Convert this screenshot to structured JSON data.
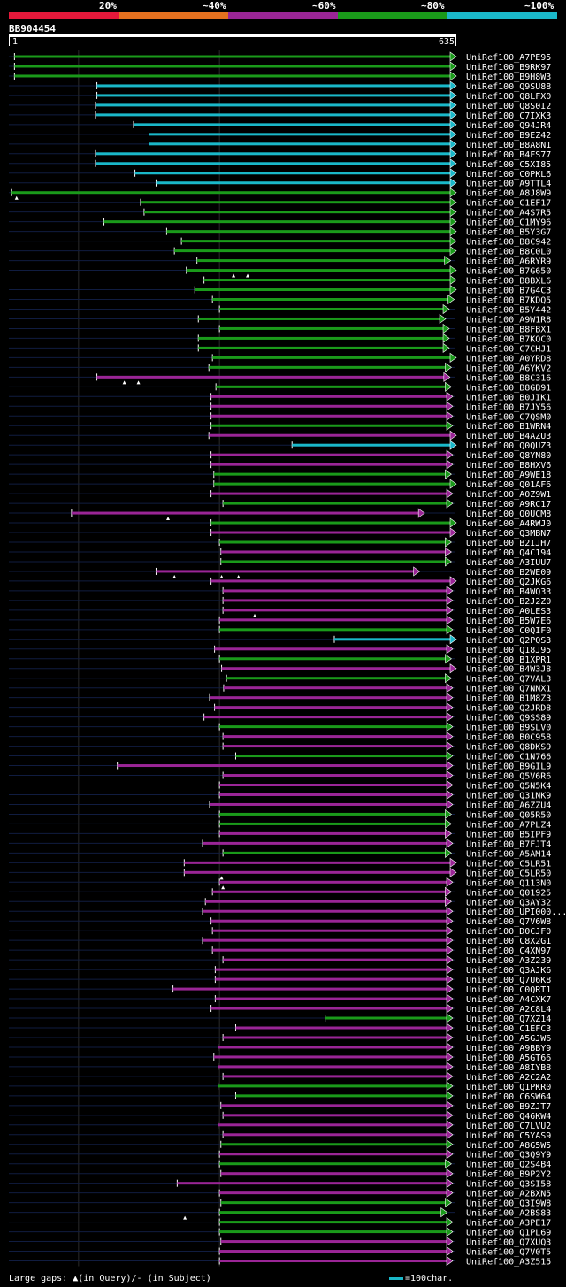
{
  "legend": {
    "labels": [
      "20%",
      "~40%",
      "~60%",
      "~80%",
      "~100%"
    ],
    "colors": [
      "#e4183a",
      "#e5711f",
      "#9a2596",
      "#1a9a1a",
      "#1ab8c9"
    ]
  },
  "query_id": "BB904454",
  "ruler": {
    "start": "1",
    "end": "635"
  },
  "footer": {
    "large_gaps": "Large gaps: ▲(in Query)/- (in Subject)",
    "scale": "=100char."
  },
  "chart_data": {
    "type": "alignment",
    "query_length": 635,
    "color_classes": {
      "G": "#1a9a1a",
      "P": "#9a2596",
      "C": "#1ab8c9"
    },
    "hits": [
      {
        "name": "UniRef100_A7PE95",
        "start": 9,
        "end": 635,
        "cls": "G"
      },
      {
        "name": "UniRef100_B9RK97",
        "start": 9,
        "end": 635,
        "cls": "G"
      },
      {
        "name": "UniRef100_B9H8W3",
        "start": 9,
        "end": 635,
        "cls": "G"
      },
      {
        "name": "UniRef100_Q9SU88",
        "start": 126,
        "end": 635,
        "cls": "C"
      },
      {
        "name": "UniRef100_Q8LFX0",
        "start": 126,
        "end": 635,
        "cls": "C"
      },
      {
        "name": "UniRef100_Q8S0I2",
        "start": 124,
        "end": 635,
        "cls": "C"
      },
      {
        "name": "UniRef100_C7IXK3",
        "start": 124,
        "end": 635,
        "cls": "C"
      },
      {
        "name": "UniRef100_Q94JR4",
        "start": 178,
        "end": 635,
        "cls": "C"
      },
      {
        "name": "UniRef100_B9EZ42",
        "start": 200,
        "end": 635,
        "cls": "C"
      },
      {
        "name": "UniRef100_B8A8N1",
        "start": 200,
        "end": 635,
        "cls": "C"
      },
      {
        "name": "UniRef100_B4FS77",
        "start": 124,
        "end": 635,
        "cls": "C"
      },
      {
        "name": "UniRef100_C5XI85",
        "start": 124,
        "end": 635,
        "cls": "C"
      },
      {
        "name": "UniRef100_C0PKL6",
        "start": 180,
        "end": 635,
        "cls": "C"
      },
      {
        "name": "UniRef100_A9TTL4",
        "start": 210,
        "end": 635,
        "cls": "C"
      },
      {
        "name": "UniRef100_A8J8W9",
        "start": 5,
        "end": 635,
        "cls": "G"
      },
      {
        "name": "UniRef100_C1EF17",
        "start": 188,
        "end": 635,
        "cls": "G"
      },
      {
        "name": "UniRef100_A4S7R5",
        "start": 193,
        "end": 635,
        "cls": "G"
      },
      {
        "name": "UniRef100_C1MY96",
        "start": 136,
        "end": 635,
        "cls": "G"
      },
      {
        "name": "UniRef100_B5Y3G7",
        "start": 225,
        "end": 635,
        "cls": "G"
      },
      {
        "name": "UniRef100_B8C942",
        "start": 246,
        "end": 635,
        "cls": "G"
      },
      {
        "name": "UniRef100_B8C0L0",
        "start": 236,
        "end": 635,
        "cls": "G"
      },
      {
        "name": "UniRef100_A6RYR9",
        "start": 268,
        "end": 627,
        "cls": "G"
      },
      {
        "name": "UniRef100_B7G650",
        "start": 253,
        "end": 635,
        "cls": "G"
      },
      {
        "name": "UniRef100_B8BXL6",
        "start": 278,
        "end": 635,
        "cls": "G"
      },
      {
        "name": "UniRef100_B7G4C3",
        "start": 265,
        "end": 635,
        "cls": "G"
      },
      {
        "name": "UniRef100_B7KDQ5",
        "start": 290,
        "end": 632,
        "cls": "G"
      },
      {
        "name": "UniRef100_B5Y442",
        "start": 300,
        "end": 625,
        "cls": "G"
      },
      {
        "name": "UniRef100_A9W1R8",
        "start": 270,
        "end": 620,
        "cls": "G"
      },
      {
        "name": "UniRef100_B8FBX1",
        "start": 300,
        "end": 625,
        "cls": "G"
      },
      {
        "name": "UniRef100_B7KQC0",
        "start": 270,
        "end": 625,
        "cls": "G"
      },
      {
        "name": "UniRef100_C7CHJ1",
        "start": 270,
        "end": 625,
        "cls": "G"
      },
      {
        "name": "UniRef100_A0YRD8",
        "start": 290,
        "end": 635,
        "cls": "G"
      },
      {
        "name": "UniRef100_A6YKV2",
        "start": 285,
        "end": 628,
        "cls": "G"
      },
      {
        "name": "UniRef100_B8C316",
        "start": 126,
        "end": 626,
        "cls": "P"
      },
      {
        "name": "UniRef100_B8GB91",
        "start": 295,
        "end": 628,
        "cls": "G"
      },
      {
        "name": "UniRef100_B0JIK1",
        "start": 288,
        "end": 630,
        "cls": "P"
      },
      {
        "name": "UniRef100_B7JY56",
        "start": 288,
        "end": 630,
        "cls": "P"
      },
      {
        "name": "UniRef100_C7QSM0",
        "start": 288,
        "end": 630,
        "cls": "P"
      },
      {
        "name": "UniRef100_B1WRN4",
        "start": 288,
        "end": 630,
        "cls": "G"
      },
      {
        "name": "UniRef100_B4AZU3",
        "start": 285,
        "end": 635,
        "cls": "P"
      },
      {
        "name": "UniRef100_Q0QUZ3",
        "start": 403,
        "end": 635,
        "cls": "C"
      },
      {
        "name": "UniRef100_Q8YN80",
        "start": 288,
        "end": 630,
        "cls": "P"
      },
      {
        "name": "UniRef100_B8HXV6",
        "start": 288,
        "end": 630,
        "cls": "P"
      },
      {
        "name": "UniRef100_A9WE18",
        "start": 292,
        "end": 628,
        "cls": "G"
      },
      {
        "name": "UniRef100_Q01AF6",
        "start": 292,
        "end": 635,
        "cls": "G"
      },
      {
        "name": "UniRef100_A0Z9W1",
        "start": 288,
        "end": 630,
        "cls": "P"
      },
      {
        "name": "UniRef100_A9RC17",
        "start": 305,
        "end": 630,
        "cls": "G"
      },
      {
        "name": "UniRef100_Q0UCM8",
        "start": 90,
        "end": 590,
        "cls": "P"
      },
      {
        "name": "UniRef100_A4RWJ0",
        "start": 288,
        "end": 635,
        "cls": "G"
      },
      {
        "name": "UniRef100_Q3MBN7",
        "start": 288,
        "end": 635,
        "cls": "P"
      },
      {
        "name": "UniRef100_B2IJH7",
        "start": 300,
        "end": 628,
        "cls": "G"
      },
      {
        "name": "UniRef100_Q4C194",
        "start": 302,
        "end": 628,
        "cls": "P"
      },
      {
        "name": "UniRef100_A3IUU7",
        "start": 302,
        "end": 628,
        "cls": "G"
      },
      {
        "name": "UniRef100_B2WE09",
        "start": 210,
        "end": 583,
        "cls": "P"
      },
      {
        "name": "UniRef100_Q2JKG6",
        "start": 288,
        "end": 635,
        "cls": "P"
      },
      {
        "name": "UniRef100_B4WQ33",
        "start": 305,
        "end": 630,
        "cls": "P"
      },
      {
        "name": "UniRef100_B2J2Z0",
        "start": 305,
        "end": 630,
        "cls": "P"
      },
      {
        "name": "UniRef100_A0LES3",
        "start": 305,
        "end": 630,
        "cls": "P"
      },
      {
        "name": "UniRef100_B5W7E6",
        "start": 300,
        "end": 630,
        "cls": "P"
      },
      {
        "name": "UniRef100_C0QIF0",
        "start": 300,
        "end": 630,
        "cls": "G"
      },
      {
        "name": "UniRef100_Q2PQS3",
        "start": 463,
        "end": 635,
        "cls": "C"
      },
      {
        "name": "UniRef100_Q18J95",
        "start": 293,
        "end": 630,
        "cls": "P"
      },
      {
        "name": "UniRef100_B1XPR1",
        "start": 300,
        "end": 628,
        "cls": "G"
      },
      {
        "name": "UniRef100_B4W3J8",
        "start": 303,
        "end": 635,
        "cls": "P"
      },
      {
        "name": "UniRef100_Q7VAL3",
        "start": 310,
        "end": 628,
        "cls": "G"
      },
      {
        "name": "UniRef100_Q7NNX1",
        "start": 306,
        "end": 630,
        "cls": "P"
      },
      {
        "name": "UniRef100_B1M8Z3",
        "start": 286,
        "end": 630,
        "cls": "P"
      },
      {
        "name": "UniRef100_Q2JRD8",
        "start": 293,
        "end": 630,
        "cls": "P"
      },
      {
        "name": "UniRef100_Q9SS89",
        "start": 278,
        "end": 630,
        "cls": "P"
      },
      {
        "name": "UniRef100_B9SLV0",
        "start": 300,
        "end": 630,
        "cls": "G"
      },
      {
        "name": "UniRef100_B0C958",
        "start": 305,
        "end": 630,
        "cls": "P"
      },
      {
        "name": "UniRef100_Q8DKS9",
        "start": 305,
        "end": 630,
        "cls": "P"
      },
      {
        "name": "UniRef100_C1N766",
        "start": 323,
        "end": 630,
        "cls": "G"
      },
      {
        "name": "UniRef100_B9GIL9",
        "start": 155,
        "end": 630,
        "cls": "P"
      },
      {
        "name": "UniRef100_Q5V6R6",
        "start": 305,
        "end": 630,
        "cls": "P"
      },
      {
        "name": "UniRef100_Q5N5K4",
        "start": 300,
        "end": 630,
        "cls": "P"
      },
      {
        "name": "UniRef100_Q31NK9",
        "start": 300,
        "end": 630,
        "cls": "P"
      },
      {
        "name": "UniRef100_A6ZZU4",
        "start": 286,
        "end": 630,
        "cls": "P"
      },
      {
        "name": "UniRef100_Q05R50",
        "start": 300,
        "end": 628,
        "cls": "G"
      },
      {
        "name": "UniRef100_A7PLZ4",
        "start": 300,
        "end": 628,
        "cls": "G"
      },
      {
        "name": "UniRef100_B5IPF9",
        "start": 300,
        "end": 628,
        "cls": "P"
      },
      {
        "name": "UniRef100_B7FJT4",
        "start": 276,
        "end": 630,
        "cls": "P"
      },
      {
        "name": "UniRef100_A5AM14",
        "start": 305,
        "end": 628,
        "cls": "G"
      },
      {
        "name": "UniRef100_C5LR51",
        "start": 250,
        "end": 635,
        "cls": "P"
      },
      {
        "name": "UniRef100_C5LR50",
        "start": 250,
        "end": 635,
        "cls": "P"
      },
      {
        "name": "UniRef100_Q113N0",
        "start": 300,
        "end": 630,
        "cls": "P"
      },
      {
        "name": "UniRef100_Q01925",
        "start": 290,
        "end": 628,
        "cls": "P"
      },
      {
        "name": "UniRef100_Q3AY32",
        "start": 280,
        "end": 628,
        "cls": "P"
      },
      {
        "name": "UniRef100_UPI000...",
        "start": 276,
        "end": 630,
        "cls": "P"
      },
      {
        "name": "UniRef100_Q7V6W8",
        "start": 288,
        "end": 630,
        "cls": "P"
      },
      {
        "name": "UniRef100_D0CJF0",
        "start": 290,
        "end": 630,
        "cls": "P"
      },
      {
        "name": "UniRef100_C8X2G1",
        "start": 276,
        "end": 630,
        "cls": "P"
      },
      {
        "name": "UniRef100_C4XN97",
        "start": 290,
        "end": 630,
        "cls": "P"
      },
      {
        "name": "UniRef100_A3Z239",
        "start": 305,
        "end": 630,
        "cls": "P"
      },
      {
        "name": "UniRef100_Q3AJK6",
        "start": 294,
        "end": 630,
        "cls": "P"
      },
      {
        "name": "UniRef100_Q7U6K8",
        "start": 294,
        "end": 630,
        "cls": "P"
      },
      {
        "name": "UniRef100_C0QRT1",
        "start": 234,
        "end": 630,
        "cls": "P"
      },
      {
        "name": "UniRef100_A4CXK7",
        "start": 294,
        "end": 630,
        "cls": "P"
      },
      {
        "name": "UniRef100_A2C8L4",
        "start": 288,
        "end": 630,
        "cls": "P"
      },
      {
        "name": "UniRef100_Q7XZ14",
        "start": 450,
        "end": 630,
        "cls": "G"
      },
      {
        "name": "UniRef100_C1EFC3",
        "start": 323,
        "end": 630,
        "cls": "P"
      },
      {
        "name": "UniRef100_A5GJW6",
        "start": 305,
        "end": 630,
        "cls": "P"
      },
      {
        "name": "UniRef100_A9BBY9",
        "start": 298,
        "end": 630,
        "cls": "P"
      },
      {
        "name": "UniRef100_A5GT66",
        "start": 292,
        "end": 630,
        "cls": "P"
      },
      {
        "name": "UniRef100_A8IYB8",
        "start": 298,
        "end": 630,
        "cls": "P"
      },
      {
        "name": "UniRef100_A2C2A2",
        "start": 305,
        "end": 630,
        "cls": "P"
      },
      {
        "name": "UniRef100_Q1PKR0",
        "start": 298,
        "end": 630,
        "cls": "G"
      },
      {
        "name": "UniRef100_C6SW64",
        "start": 323,
        "end": 630,
        "cls": "G"
      },
      {
        "name": "UniRef100_B9ZJT7",
        "start": 302,
        "end": 630,
        "cls": "P"
      },
      {
        "name": "UniRef100_Q46KW4",
        "start": 305,
        "end": 630,
        "cls": "P"
      },
      {
        "name": "UniRef100_C7LVU2",
        "start": 298,
        "end": 630,
        "cls": "P"
      },
      {
        "name": "UniRef100_C5YAS9",
        "start": 305,
        "end": 630,
        "cls": "P"
      },
      {
        "name": "UniRef100_A8G5W5",
        "start": 302,
        "end": 630,
        "cls": "G"
      },
      {
        "name": "UniRef100_Q3Q9Y9",
        "start": 300,
        "end": 630,
        "cls": "P"
      },
      {
        "name": "UniRef100_Q2S4B4",
        "start": 300,
        "end": 628,
        "cls": "G"
      },
      {
        "name": "UniRef100_B9P2Y2",
        "start": 302,
        "end": 630,
        "cls": "P"
      },
      {
        "name": "UniRef100_Q3SI58",
        "start": 240,
        "end": 630,
        "cls": "P"
      },
      {
        "name": "UniRef100_A2BXN5",
        "start": 300,
        "end": 630,
        "cls": "P"
      },
      {
        "name": "UniRef100_Q3I9W8",
        "start": 302,
        "end": 628,
        "cls": "G"
      },
      {
        "name": "UniRef100_A2BS83",
        "start": 300,
        "end": 622,
        "cls": "G"
      },
      {
        "name": "UniRef100_A3PE17",
        "start": 300,
        "end": 630,
        "cls": "G"
      },
      {
        "name": "UniRef100_Q1PL69",
        "start": 300,
        "end": 630,
        "cls": "G"
      },
      {
        "name": "UniRef100_Q7XUQ3",
        "start": 302,
        "end": 630,
        "cls": "P"
      },
      {
        "name": "UniRef100_Q7V0T5",
        "start": 300,
        "end": 630,
        "cls": "P"
      },
      {
        "name": "UniRef100_A3Z515",
        "start": 300,
        "end": 630,
        "cls": "P"
      }
    ],
    "query_gaps": [
      {
        "row": 14,
        "pos": 12
      },
      {
        "row": 22,
        "pos": 320
      },
      {
        "row": 22,
        "pos": 340
      },
      {
        "row": 33,
        "pos": 165
      },
      {
        "row": 33,
        "pos": 185
      },
      {
        "row": 47,
        "pos": 227
      },
      {
        "row": 53,
        "pos": 236
      },
      {
        "row": 53,
        "pos": 303
      },
      {
        "row": 53,
        "pos": 327
      },
      {
        "row": 57,
        "pos": 350
      },
      {
        "row": 84,
        "pos": 303
      },
      {
        "row": 85,
        "pos": 305
      },
      {
        "row": 119,
        "pos": 251
      }
    ],
    "gridlines": [
      100,
      200,
      300
    ]
  }
}
